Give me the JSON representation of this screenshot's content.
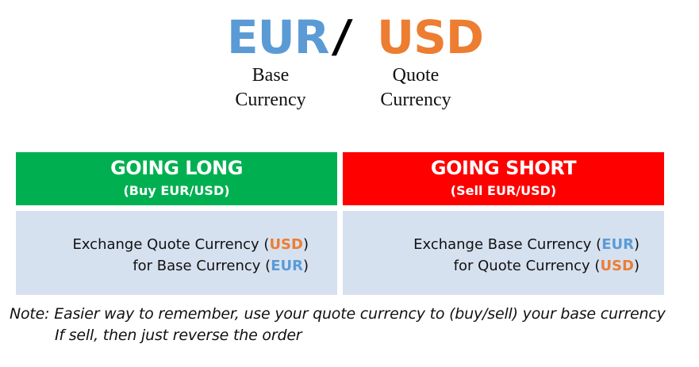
{
  "pair": {
    "base": "EUR",
    "separator": "/",
    "quote": "USD",
    "base_caption": [
      "Base",
      "Currency"
    ],
    "quote_caption": [
      "Quote",
      "Currency"
    ]
  },
  "colors": {
    "base": "#5b9bd5",
    "quote": "#ed7d31",
    "long_header": "#00b050",
    "short_header": "#ff0000",
    "cell_background": "#d6e1f0"
  },
  "long": {
    "title": "GOING LONG",
    "subtitle": "(Buy EUR/USD)",
    "line1_prefix": "Exchange Quote Currency (",
    "line1_code": "USD",
    "line1_suffix": ")",
    "line2_prefix": "for Base Currency (",
    "line2_code": "EUR",
    "line2_suffix": ")"
  },
  "short": {
    "title": "GOING SHORT",
    "subtitle": "(Sell EUR/USD)",
    "line1_prefix": "Exchange Base Currency (",
    "line1_code": "EUR",
    "line1_suffix": ")",
    "line2_prefix": "for Quote Currency (",
    "line2_code": "USD",
    "line2_suffix": ")"
  },
  "note": {
    "line1": "Note: Easier way to remember, use your quote currency to (buy/sell) your base currency",
    "line2": "If sell, then just reverse the order"
  }
}
